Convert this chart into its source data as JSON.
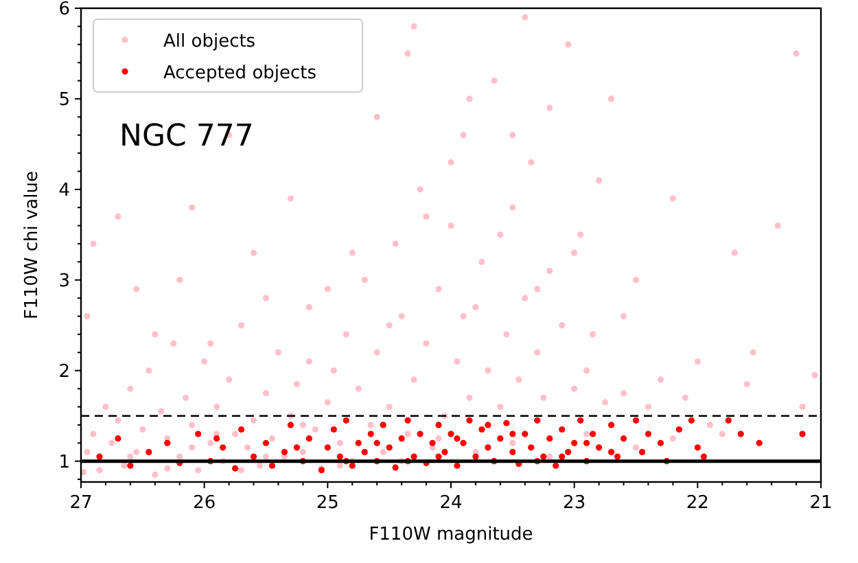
{
  "chart_data": {
    "type": "scatter",
    "xlabel": "F110W magnitude",
    "ylabel": "F110W chi value",
    "xlim": [
      27,
      21
    ],
    "ylim": [
      0.77,
      6
    ],
    "xticks": [
      27,
      26,
      25,
      24,
      23,
      22,
      21,
      {
        "value": 26.8,
        "label": null
      },
      {
        "value": 26.6,
        "label": null
      },
      {
        "value": 26.4,
        "label": null
      },
      {
        "value": 26.2,
        "label": null
      },
      {
        "value": 25.8,
        "label": null
      },
      {
        "value": 25.6,
        "label": null
      },
      {
        "value": 25.4,
        "label": null
      },
      {
        "value": 25.2,
        "label": null
      },
      {
        "value": 24.8,
        "label": null
      },
      {
        "value": 24.6,
        "label": null
      },
      {
        "value": 24.4,
        "label": null
      },
      {
        "value": 24.2,
        "label": null
      },
      {
        "value": 23.8,
        "label": null
      },
      {
        "value": 23.6,
        "label": null
      },
      {
        "value": 23.4,
        "label": null
      },
      {
        "value": 23.2,
        "label": null
      },
      {
        "value": 22.8,
        "label": null
      },
      {
        "value": 22.6,
        "label": null
      },
      {
        "value": 22.4,
        "label": null
      },
      {
        "value": 22.2,
        "label": null
      },
      {
        "value": 21.8,
        "label": null
      },
      {
        "value": 21.6,
        "label": null
      },
      {
        "value": 21.4,
        "label": null
      },
      {
        "value": 21.2,
        "label": null
      }
    ],
    "yticks": [
      1,
      2,
      3,
      4,
      5,
      6,
      {
        "value": 0.8,
        "label": null
      },
      {
        "value": 1.2,
        "label": null
      },
      {
        "value": 1.4,
        "label": null
      },
      {
        "value": 1.6,
        "label": null
      },
      {
        "value": 1.8,
        "label": null
      },
      {
        "value": 2.2,
        "label": null
      },
      {
        "value": 2.4,
        "label": null
      },
      {
        "value": 2.6,
        "label": null
      },
      {
        "value": 2.8,
        "label": null
      },
      {
        "value": 3.2,
        "label": null
      },
      {
        "value": 3.4,
        "label": null
      },
      {
        "value": 3.6,
        "label": null
      },
      {
        "value": 3.8,
        "label": null
      },
      {
        "value": 4.2,
        "label": null
      },
      {
        "value": 4.4,
        "label": null
      },
      {
        "value": 4.6,
        "label": null
      },
      {
        "value": 4.8,
        "label": null
      },
      {
        "value": 5.2,
        "label": null
      },
      {
        "value": 5.4,
        "label": null
      },
      {
        "value": 5.6,
        "label": null
      },
      {
        "value": 5.8,
        "label": null
      }
    ],
    "marker": "circle",
    "legend": "top left",
    "grid": false,
    "annotations": [
      "NGC 777"
    ],
    "ref_lines": [
      {
        "axis": "y",
        "value": 1.5,
        "color": "#000000",
        "line_style": "dashed"
      },
      {
        "axis": "y",
        "value": 1,
        "color": "#000000",
        "line_style": "solid"
      }
    ],
    "series": [
      {
        "name": "All objects",
        "color": "#ffc0cb",
        "x": [
          26.95,
          26.9,
          26.85,
          26.8,
          26.75,
          26.7,
          26.65,
          26.6,
          26.55,
          26.5,
          26.45,
          26.4,
          26.35,
          26.3,
          26.25,
          26.2,
          26.15,
          26.1,
          26.05,
          26.0,
          25.95,
          25.9,
          25.85,
          25.8,
          25.75,
          25.7,
          25.65,
          25.6,
          25.55,
          25.5,
          25.45,
          25.4,
          25.35,
          25.3,
          25.25,
          25.2,
          25.15,
          25.1,
          25.05,
          25.0,
          24.95,
          24.9,
          24.85,
          24.8,
          24.75,
          24.7,
          24.65,
          24.6,
          24.55,
          24.5,
          24.45,
          24.4,
          24.35,
          24.3,
          24.25,
          24.2,
          24.15,
          24.1,
          24.05,
          24.0,
          23.95,
          23.9,
          23.85,
          23.8,
          23.75,
          23.7,
          23.65,
          23.6,
          23.55,
          23.5,
          23.45,
          23.4,
          23.35,
          23.3,
          23.25,
          23.2,
          23.1,
          23.05,
          23.0,
          22.95,
          22.9,
          22.8,
          22.75,
          22.6,
          22.5,
          22.4,
          22.3,
          22.2,
          22.1,
          22.0,
          21.9,
          21.7,
          21.6,
          21.55,
          21.35,
          21.2,
          21.15,
          21.05,
          26.95,
          26.9,
          26.7,
          26.55,
          26.4,
          26.2,
          26.1,
          25.95,
          25.8,
          25.6,
          25.5,
          25.3,
          25.15,
          25.0,
          24.35,
          24.8,
          24.6,
          24.5,
          24.3,
          24.2,
          24.0,
          23.9,
          23.85,
          23.6,
          23.5,
          23.4,
          23.3,
          23.2,
          23.0,
          22.85,
          22.7,
          22.6,
          26.98,
          26.6,
          26.3,
          26.1,
          25.9,
          25.7,
          25.5,
          25.2,
          24.9,
          24.7,
          24.4,
          24.1,
          23.8,
          23.5,
          23.2,
          22.9,
          22.5,
          22.2,
          21.8
        ],
        "values": [
          1.1,
          1.3,
          0.9,
          1.6,
          1.2,
          1.45,
          0.95,
          1.8,
          1.1,
          1.35,
          2.0,
          0.85,
          1.55,
          1.25,
          2.3,
          1.05,
          1.7,
          1.4,
          0.9,
          2.1,
          1.2,
          1.6,
          1.0,
          1.9,
          1.3,
          2.5,
          1.15,
          1.45,
          0.95,
          1.75,
          1.25,
          2.2,
          1.05,
          1.5,
          1.85,
          1.1,
          2.7,
          1.35,
          0.92,
          1.65,
          2.0,
          1.2,
          2.4,
          1.0,
          1.8,
          3.0,
          1.4,
          2.2,
          1.1,
          1.6,
          3.4,
          2.6,
          1.3,
          1.9,
          4.0,
          2.3,
          1.15,
          2.9,
          1.5,
          3.6,
          2.1,
          4.6,
          1.7,
          2.7,
          3.2,
          2.0,
          5.2,
          1.6,
          2.4,
          3.8,
          1.9,
          2.8,
          4.3,
          2.2,
          1.7,
          3.1,
          2.5,
          5.6,
          1.8,
          3.5,
          2.0,
          4.1,
          1.65,
          2.6,
          3.0,
          1.6,
          1.9,
          3.9,
          1.7,
          2.1,
          1.4,
          3.3,
          1.85,
          2.2,
          3.6,
          5.5,
          1.6,
          1.95,
          2.6,
          3.4,
          3.7,
          2.9,
          2.4,
          3.0,
          3.8,
          2.3,
          4.6,
          3.3,
          2.8,
          3.9,
          2.1,
          2.9,
          5.5,
          3.3,
          4.8,
          2.5,
          5.8,
          3.7,
          4.3,
          2.6,
          5.0,
          3.5,
          4.6,
          5.9,
          2.9,
          4.9,
          3.3,
          2.4,
          5.0,
          1.75,
          0.88,
          1.05,
          0.92,
          1.15,
          1.3,
          0.9,
          1.05,
          1.4,
          0.95,
          1.1,
          1.0,
          1.25,
          1.1,
          1.2,
          1.05,
          1.3,
          1.15,
          1.25,
          1.3
        ]
      },
      {
        "name": "Accepted objects",
        "color": "#ff0000",
        "x": [
          26.85,
          26.7,
          26.6,
          26.45,
          26.3,
          26.2,
          26.05,
          25.95,
          25.85,
          25.75,
          25.7,
          25.6,
          25.5,
          25.45,
          25.35,
          25.3,
          25.2,
          25.15,
          25.05,
          25.0,
          24.95,
          24.9,
          24.85,
          24.8,
          24.75,
          24.7,
          24.65,
          24.6,
          24.55,
          24.5,
          24.45,
          24.4,
          24.35,
          24.3,
          24.25,
          24.2,
          24.15,
          24.1,
          24.05,
          24.0,
          23.95,
          23.9,
          23.85,
          23.8,
          23.75,
          23.7,
          23.65,
          23.6,
          23.55,
          23.5,
          23.45,
          23.4,
          23.35,
          23.3,
          23.25,
          23.2,
          23.15,
          23.1,
          23.05,
          23.0,
          22.95,
          22.9,
          22.85,
          22.8,
          22.7,
          22.65,
          22.6,
          22.5,
          22.45,
          22.4,
          22.3,
          22.25,
          22.15,
          22.05,
          22.0,
          21.95,
          21.75,
          21.65,
          21.5,
          21.15,
          25.9,
          25.25,
          24.85,
          24.6,
          24.35,
          24.1,
          23.95,
          23.7,
          23.5,
          23.3,
          23.1,
          22.9,
          22.7
        ],
        "values": [
          1.05,
          1.25,
          0.95,
          1.1,
          1.2,
          0.98,
          1.3,
          1.0,
          1.15,
          0.92,
          1.35,
          1.05,
          1.2,
          0.95,
          1.1,
          1.4,
          1.0,
          1.25,
          0.9,
          1.15,
          1.35,
          1.05,
          1.45,
          0.95,
          1.2,
          1.1,
          1.3,
          1.0,
          1.4,
          1.15,
          0.93,
          1.25,
          1.45,
          1.05,
          1.3,
          0.98,
          1.2,
          1.4,
          1.1,
          1.3,
          0.95,
          1.2,
          1.45,
          1.05,
          1.35,
          1.15,
          1.0,
          1.25,
          1.42,
          1.1,
          0.97,
          1.3,
          1.15,
          1.45,
          1.05,
          1.25,
          0.95,
          1.35,
          1.1,
          1.2,
          1.45,
          1.0,
          1.3,
          1.15,
          1.4,
          1.05,
          1.25,
          1.45,
          1.1,
          1.3,
          1.2,
          1.0,
          1.35,
          1.45,
          1.15,
          1.05,
          1.45,
          1.3,
          1.2,
          1.3,
          1.25,
          1.15,
          1.0,
          1.2,
          1.0,
          1.05,
          1.25,
          1.4,
          1.3,
          1.0,
          1.05,
          1.2,
          1.1
        ]
      }
    ]
  }
}
